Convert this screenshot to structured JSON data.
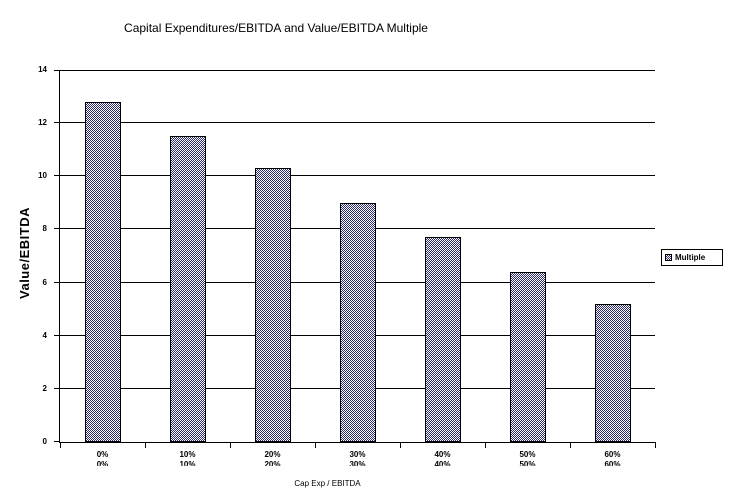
{
  "chart_data": {
    "type": "bar",
    "title": "Capital Expenditures/EBITDA and Value/EBITDA Multiple",
    "xlabel": "Cap Exp / EBITDA",
    "ylabel": "Value/EBITDA",
    "categories": [
      "0%",
      "10%",
      "20%",
      "30%",
      "40%",
      "50%",
      "60%"
    ],
    "series": [
      {
        "name": "Multiple",
        "values": [
          12.8,
          11.5,
          10.3,
          9.0,
          7.7,
          6.4,
          5.2
        ]
      }
    ],
    "ylim": [
      0,
      14
    ],
    "yticks": [
      0,
      2,
      4,
      6,
      8,
      10,
      12,
      14
    ],
    "grid": true,
    "legend_position": "right",
    "bar_fill": {
      "pattern": "checker-1px",
      "dark": "#28286e",
      "light": "#ffffff"
    },
    "colors": {
      "axis": "#000000",
      "gridline": "#000000",
      "text": "#000000",
      "background": "#ffffff",
      "bar_border": "#000000"
    }
  }
}
